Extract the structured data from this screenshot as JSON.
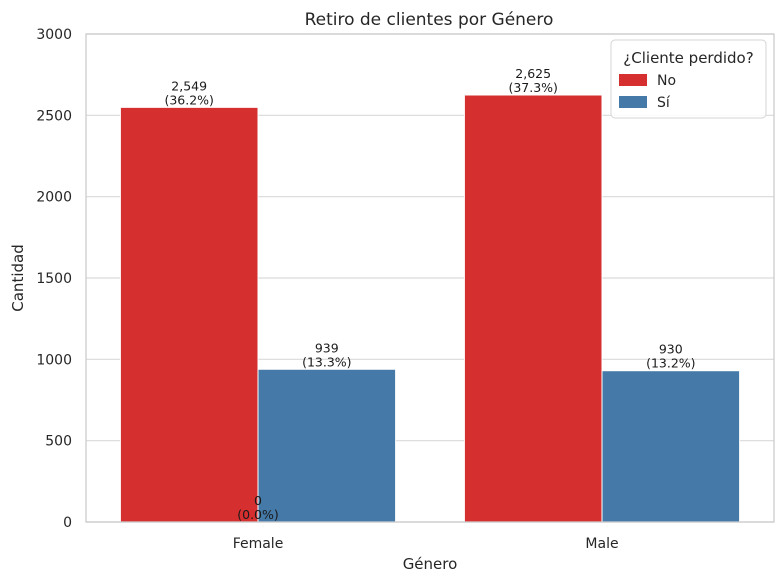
{
  "chart_data": {
    "type": "bar",
    "title": "Retiro de clientes por Género",
    "xlabel": "Género",
    "ylabel": "Cantidad",
    "categories": [
      "Female",
      "Male"
    ],
    "ylim": [
      0,
      3000
    ],
    "yticks": [
      0,
      500,
      1000,
      1500,
      2000,
      2500,
      3000
    ],
    "grid": true,
    "legend": {
      "title": "¿Cliente perdido?",
      "placement": "top-right"
    },
    "series": [
      {
        "name": "No",
        "color": "#d62f2f",
        "values": [
          2549,
          2625
        ],
        "labels": [
          "2,549\n(36.2%)",
          "2,625\n(37.3%)"
        ]
      },
      {
        "name": "Sí",
        "color": "#4479a8",
        "values": [
          939,
          930
        ],
        "labels": [
          "939\n(13.3%)",
          "930\n(13.2%)"
        ]
      }
    ],
    "annotations": [
      {
        "text": "0\n(0.0%)",
        "category": "Female",
        "y": 0
      }
    ]
  }
}
